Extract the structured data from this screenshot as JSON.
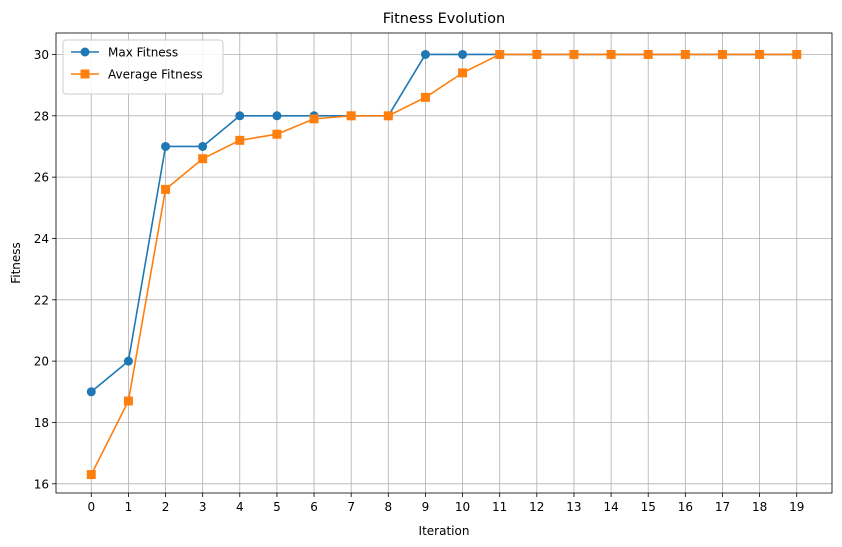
{
  "chart_data": {
    "type": "line",
    "title": "Fitness Evolution",
    "xlabel": "Iteration",
    "ylabel": "Fitness",
    "x": [
      0,
      1,
      2,
      3,
      4,
      5,
      6,
      7,
      8,
      9,
      10,
      11,
      12,
      13,
      14,
      15,
      16,
      17,
      18,
      19
    ],
    "xticks": [
      0,
      1,
      2,
      3,
      4,
      5,
      6,
      7,
      8,
      9,
      10,
      11,
      12,
      13,
      14,
      15,
      16,
      17,
      18,
      19
    ],
    "yticks": [
      16,
      18,
      20,
      22,
      24,
      26,
      28,
      30
    ],
    "xlim": [
      -0.95,
      19.95
    ],
    "ylim": [
      15.7,
      30.7
    ],
    "grid": true,
    "legend_position": "top-left",
    "series": [
      {
        "name": "Max Fitness",
        "color": "#1f77b4",
        "marker": "circle",
        "values": [
          19,
          20,
          27,
          27,
          28,
          28,
          28,
          28,
          28,
          30,
          30,
          30,
          30,
          30,
          30,
          30,
          30,
          30,
          30,
          30
        ]
      },
      {
        "name": "Average Fitness",
        "color": "#ff7f0e",
        "marker": "square",
        "values": [
          16.3,
          18.7,
          25.6,
          26.6,
          27.2,
          27.4,
          27.9,
          28.0,
          28.0,
          28.6,
          29.4,
          30,
          30,
          30,
          30,
          30,
          30,
          30,
          30,
          30
        ]
      }
    ]
  }
}
